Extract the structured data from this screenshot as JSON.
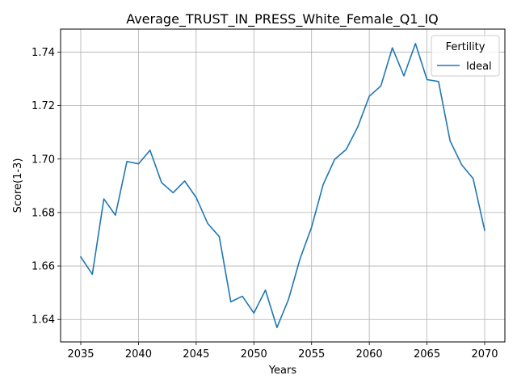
{
  "chart_data": {
    "type": "line",
    "title": "Average_TRUST_IN_PRESS_White_Female_Q1_IQ",
    "xlabel": "Years",
    "ylabel": "Score(1-3)",
    "xlim": [
      2033.25,
      2071.75
    ],
    "ylim": [
      1.6316,
      1.7486
    ],
    "xticks": [
      2035,
      2040,
      2045,
      2050,
      2055,
      2060,
      2065,
      2070
    ],
    "yticks": [
      1.64,
      1.66,
      1.68,
      1.7,
      1.72,
      1.74
    ],
    "ytick_labels": [
      "1.64",
      "1.66",
      "1.68",
      "1.70",
      "1.72",
      "1.74"
    ],
    "grid": true,
    "legend": {
      "title": "Fertility",
      "placement": "top-right"
    },
    "series": [
      {
        "name": "Ideal",
        "color": "#1f77b4",
        "x": [
          2035,
          2036,
          2037,
          2038,
          2039,
          2040,
          2041,
          2042,
          2043,
          2044,
          2045,
          2046,
          2047,
          2048,
          2049,
          2050,
          2051,
          2052,
          2053,
          2054,
          2055,
          2056,
          2057,
          2058,
          2059,
          2060,
          2061,
          2062,
          2063,
          2064,
          2065,
          2066,
          2067,
          2068,
          2069,
          2070
        ],
        "y": [
          1.6634,
          1.6569,
          1.6851,
          1.679,
          1.6991,
          1.6982,
          1.7033,
          1.6912,
          1.6874,
          1.6918,
          1.6856,
          1.6759,
          1.671,
          1.6466,
          1.6487,
          1.6424,
          1.651,
          1.637,
          1.6475,
          1.6627,
          1.6745,
          1.6904,
          1.6999,
          1.7036,
          1.712,
          1.7235,
          1.7273,
          1.7416,
          1.7311,
          1.7432,
          1.7297,
          1.729,
          1.7068,
          1.6979,
          1.6927,
          1.6733
        ]
      }
    ]
  }
}
